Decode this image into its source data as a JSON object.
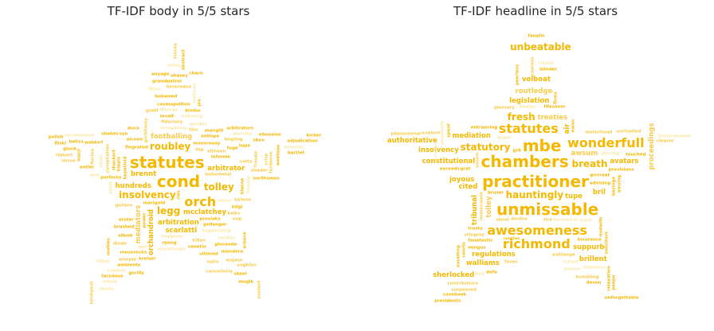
{
  "colors": {
    "strong": "#f5b800",
    "mid": "#f8cc4a",
    "pale": "#fbe7a6",
    "title": "#262626"
  },
  "panels": [
    {
      "title": "TF-IDF body in 5/5 stars",
      "words": [
        {
          "t": "cond",
          "w": 5
        },
        {
          "t": "statutes",
          "w": 5
        },
        {
          "t": "orch",
          "w": 4
        },
        {
          "t": "legg",
          "w": 3
        },
        {
          "t": "insolvency",
          "w": 3
        },
        {
          "t": "roubley",
          "w": 3
        },
        {
          "t": "tolley",
          "w": 3
        },
        {
          "t": "arbitration",
          "w": 2
        },
        {
          "t": "footballing",
          "w": 2
        },
        {
          "t": "mcclatchey",
          "w": 2
        },
        {
          "t": "hundreds",
          "w": 2
        },
        {
          "t": "arbitrator",
          "w": 2
        },
        {
          "t": "mediators",
          "w": 2
        },
        {
          "t": "orchandroid",
          "w": 2
        },
        {
          "t": "brennt",
          "w": 2
        },
        {
          "t": "scarlatti",
          "w": 2
        },
        {
          "t": "mousrouay",
          "w": 1
        },
        {
          "t": "hepatisid",
          "w": 1
        },
        {
          "t": "thp",
          "w": 1
        },
        {
          "t": "informe",
          "w": 1
        },
        {
          "t": "arrogances",
          "w": 1
        },
        {
          "t": "gorblimey",
          "w": 1
        },
        {
          "t": "gollanger",
          "w": 1
        },
        {
          "t": "marigold",
          "w": 1
        },
        {
          "t": "bobymetal",
          "w": 1
        },
        {
          "t": "torus",
          "w": 1
        },
        {
          "t": "kippis",
          "w": 1
        },
        {
          "t": "eltheen",
          "w": 1
        },
        {
          "t": "rias",
          "w": 1
        },
        {
          "t": "antispe",
          "w": 1
        },
        {
          "t": "sloppoan",
          "w": 1
        },
        {
          "t": "fingrated",
          "w": 1
        },
        {
          "t": "aicnon",
          "w": 1
        },
        {
          "t": "fiduciary",
          "w": 1
        },
        {
          "t": "mangilt",
          "w": 1
        },
        {
          "t": "gorblin",
          "w": 1
        },
        {
          "t": "gollero",
          "w": 1
        },
        {
          "t": "blasne",
          "w": 1
        },
        {
          "t": "fuge",
          "w": 1
        },
        {
          "t": "killan",
          "w": 1
        },
        {
          "t": "hygenisticg",
          "w": 1
        },
        {
          "t": "rpong",
          "w": 1
        },
        {
          "t": "kelks",
          "w": 1
        },
        {
          "t": "perfecto",
          "w": 1
        },
        {
          "t": "power",
          "w": 1
        },
        {
          "t": "folksong",
          "w": 1
        },
        {
          "t": "thackert",
          "w": 1
        },
        {
          "t": "lovalt",
          "w": 1
        },
        {
          "t": "bogling",
          "w": 1
        },
        {
          "t": "brushed",
          "w": 1
        },
        {
          "t": "fillongs",
          "w": 1
        },
        {
          "t": "cotts",
          "w": 1
        },
        {
          "t": "venetin",
          "w": 1
        },
        {
          "t": "syn",
          "w": 1
        },
        {
          "t": "shader",
          "w": 1
        },
        {
          "t": "conifer",
          "w": 1
        },
        {
          "t": "ultimed",
          "w": 1
        },
        {
          "t": "compilation",
          "w": 1
        },
        {
          "t": "bilgi",
          "w": 1
        },
        {
          "t": "cosmopolitan",
          "w": 1
        },
        {
          "t": "alkali",
          "w": 1
        },
        {
          "t": "allook",
          "w": 1
        },
        {
          "t": "glocaode",
          "w": 1
        },
        {
          "t": "oup",
          "w": 1
        },
        {
          "t": "bimbo",
          "w": 1
        },
        {
          "t": "burnley",
          "w": 1
        },
        {
          "t": "frauda",
          "w": 1
        },
        {
          "t": "mousrocks",
          "w": 1
        },
        {
          "t": "prosiaks",
          "w": 1
        },
        {
          "t": "fiorina",
          "w": 1
        },
        {
          "t": "frennie",
          "w": 1
        },
        {
          "t": "bobweed",
          "w": 1
        },
        {
          "t": "fardonse",
          "w": 1
        },
        {
          "t": "shakes",
          "w": 1
        },
        {
          "t": "tupe",
          "w": 1
        },
        {
          "t": "mccollough",
          "w": 1
        },
        {
          "t": "waldorf",
          "w": 1
        },
        {
          "t": "mondero",
          "w": 1
        },
        {
          "t": "nuliv",
          "w": 1
        },
        {
          "t": "kreiser",
          "w": 1
        },
        {
          "t": "mellows",
          "w": 1
        },
        {
          "t": "heterodox",
          "w": 1
        },
        {
          "t": "shyo",
          "w": 1
        },
        {
          "t": "mollies",
          "w": 1
        },
        {
          "t": "majeur",
          "w": 1
        },
        {
          "t": "recommend",
          "w": 1
        },
        {
          "t": "ambiente",
          "w": 1
        },
        {
          "t": "crisp",
          "w": 1
        },
        {
          "t": "ebonaise",
          "w": 1
        },
        {
          "t": "marjl",
          "w": 1
        },
        {
          "t": "rubbish",
          "w": 1
        },
        {
          "t": "ohasey",
          "w": 1
        },
        {
          "t": "belizs",
          "w": 1
        },
        {
          "t": "yoghlon",
          "w": 1
        },
        {
          "t": "weetono",
          "w": 1
        },
        {
          "t": "eltalt",
          "w": 1
        },
        {
          "t": "tiss",
          "w": 1
        },
        {
          "t": "skeel",
          "w": 1
        },
        {
          "t": "farzdoue",
          "w": 1
        },
        {
          "t": "diode",
          "w": 1
        },
        {
          "t": "bobo",
          "w": 1
        },
        {
          "t": "gluck",
          "w": 1
        },
        {
          "t": "kinsey",
          "w": 1
        },
        {
          "t": "jev",
          "w": 1
        },
        {
          "t": "moglk",
          "w": 1
        },
        {
          "t": "orio",
          "w": 1
        },
        {
          "t": "polish",
          "w": 1
        },
        {
          "t": "charn",
          "w": 1
        },
        {
          "t": "wimple",
          "w": 1
        },
        {
          "t": "fliski",
          "w": 1
        },
        {
          "t": "eltalq",
          "w": 1
        },
        {
          "t": "okroe",
          "w": 1
        },
        {
          "t": "abstract",
          "w": 1
        },
        {
          "t": "antler",
          "w": 1
        },
        {
          "t": "tibbert",
          "w": 1
        },
        {
          "t": "riagar",
          "w": 1
        },
        {
          "t": "erster",
          "w": 1
        },
        {
          "t": "ezelont",
          "w": 1
        },
        {
          "t": "kicker",
          "w": 1
        },
        {
          "t": "bartlet",
          "w": 1
        },
        {
          "t": "shodo",
          "w": 1
        },
        {
          "t": "adjudication",
          "w": 1
        },
        {
          "t": "arboce",
          "w": 1
        },
        {
          "t": "godit",
          "w": 1
        },
        {
          "t": "duca",
          "w": 1
        },
        {
          "t": "apil",
          "w": 1
        },
        {
          "t": "heidipost",
          "w": 1
        },
        {
          "t": "northsman",
          "w": 1
        },
        {
          "t": "arbitrators",
          "w": 1
        },
        {
          "t": "cancelleria",
          "w": 1
        },
        {
          "t": "intmosh",
          "w": 1
        },
        {
          "t": "grandpatrol",
          "w": 1
        },
        {
          "t": "kiriens",
          "w": 1
        },
        {
          "t": "anyage",
          "w": 1
        },
        {
          "t": "gorilly",
          "w": 1
        },
        {
          "t": "fitiss",
          "w": 1
        }
      ]
    },
    {
      "title": "TF-IDF headline in 5/5 stars",
      "words": [
        {
          "t": "practitioner",
          "w": 5
        },
        {
          "t": "chambers",
          "w": 5
        },
        {
          "t": "unmissable",
          "w": 5
        },
        {
          "t": "awesomeness",
          "w": 4
        },
        {
          "t": "richmond",
          "w": 4
        },
        {
          "t": "mbe",
          "w": 5
        },
        {
          "t": "wonderfull",
          "w": 4
        },
        {
          "t": "statutes",
          "w": 4
        },
        {
          "t": "hauntingly",
          "w": 3
        },
        {
          "t": "statutory",
          "w": 3
        },
        {
          "t": "breath",
          "w": 3
        },
        {
          "t": "fresh",
          "w": 3
        },
        {
          "t": "unbeatable",
          "w": 3
        },
        {
          "t": "constitutional",
          "w": 2
        },
        {
          "t": "mediation",
          "w": 2
        },
        {
          "t": "suppurb",
          "w": 2
        },
        {
          "t": "tolley",
          "w": 2
        },
        {
          "t": "insolvency",
          "w": 2
        },
        {
          "t": "legislation",
          "w": 2
        },
        {
          "t": "tupe",
          "w": 2
        },
        {
          "t": "awsum",
          "w": 2
        },
        {
          "t": "cited",
          "w": 2
        },
        {
          "t": "regulations",
          "w": 2
        },
        {
          "t": "bril",
          "w": 2
        },
        {
          "t": "routledge",
          "w": 2
        },
        {
          "t": "authoritative",
          "w": 2
        },
        {
          "t": "sherlocked",
          "w": 2
        },
        {
          "t": "walliams",
          "w": 2
        },
        {
          "t": "treaties",
          "w": 2
        },
        {
          "t": "joyous",
          "w": 2
        },
        {
          "t": "brillent",
          "w": 2
        },
        {
          "t": "volboat",
          "w": 2
        },
        {
          "t": "proceedings",
          "w": 2
        },
        {
          "t": "avatars",
          "w": 2
        },
        {
          "t": "tribunal",
          "w": 2
        },
        {
          "t": "air",
          "w": 2
        },
        {
          "t": "devine",
          "w": 1
        },
        {
          "t": "fanatastic",
          "w": 1
        },
        {
          "t": "provisions",
          "w": 1
        },
        {
          "t": "copious",
          "w": 1
        },
        {
          "t": "hysterical",
          "w": 1
        },
        {
          "t": "insurance",
          "w": 1
        },
        {
          "t": "stingray",
          "w": 1
        },
        {
          "t": "relaxation",
          "w": 1
        },
        {
          "t": "unforgettable",
          "w": 1
        },
        {
          "t": "duper",
          "w": 1
        },
        {
          "t": "courts",
          "w": 1
        },
        {
          "t": "advising",
          "w": 1
        },
        {
          "t": "motorhood",
          "w": 1
        },
        {
          "t": "firms",
          "w": 1
        },
        {
          "t": "hilarious",
          "w": 1
        },
        {
          "t": "ashtange",
          "w": 1
        },
        {
          "t": "casebook",
          "w": 1
        },
        {
          "t": "entrancing",
          "w": 1
        },
        {
          "t": "humbling",
          "w": 1
        },
        {
          "t": "transcendent",
          "w": 1
        },
        {
          "t": "blinder",
          "w": 1
        },
        {
          "t": "ossom",
          "w": 1
        },
        {
          "t": "lifesaver",
          "w": 1
        },
        {
          "t": "touched",
          "w": 1
        },
        {
          "t": "amazballs",
          "w": 1
        },
        {
          "t": "midwife",
          "w": 1
        },
        {
          "t": "grrrreat",
          "w": 1
        },
        {
          "t": "tire",
          "w": 1
        },
        {
          "t": "peepo",
          "w": 1
        },
        {
          "t": "cutest",
          "w": 1
        },
        {
          "t": "immaculate",
          "w": 1
        },
        {
          "t": "trusts",
          "w": 1
        },
        {
          "t": "amzing",
          "w": 1
        },
        {
          "t": "contributors",
          "w": 1
        },
        {
          "t": "money",
          "w": 1
        },
        {
          "t": "spent",
          "w": 1
        },
        {
          "t": "skool",
          "w": 1
        },
        {
          "t": "exceeds",
          "w": 1
        },
        {
          "t": "defo",
          "w": 1
        },
        {
          "t": "bey",
          "w": 1
        },
        {
          "t": "grat",
          "w": 1
        },
        {
          "t": "bazinga",
          "w": 1
        },
        {
          "t": "glossary",
          "w": 1
        },
        {
          "t": "peerless",
          "w": 1
        },
        {
          "t": "kewan",
          "w": 1
        },
        {
          "t": "phenomenal",
          "w": 1
        },
        {
          "t": "solicitors",
          "w": 1
        },
        {
          "t": "excelling",
          "w": 1
        },
        {
          "t": "unrivalled",
          "w": 1
        },
        {
          "t": "stirring",
          "w": 1
        },
        {
          "t": "fanatic",
          "w": 1
        },
        {
          "t": "surpassed",
          "w": 1
        },
        {
          "t": "bruser",
          "w": 1
        },
        {
          "t": "mingus",
          "w": 1
        },
        {
          "t": "governance",
          "w": 1
        },
        {
          "t": "devon",
          "w": 1
        },
        {
          "t": "gr8",
          "w": 1
        },
        {
          "t": "exelent",
          "w": 1
        },
        {
          "t": "condition",
          "w": 1
        },
        {
          "t": "classy",
          "w": 1
        },
        {
          "t": "faves",
          "w": 1
        },
        {
          "t": "ewan",
          "w": 1
        },
        {
          "t": "presidents",
          "w": 1
        },
        {
          "t": "clearer",
          "w": 1
        },
        {
          "t": "ostin",
          "w": 1
        }
      ]
    }
  ]
}
